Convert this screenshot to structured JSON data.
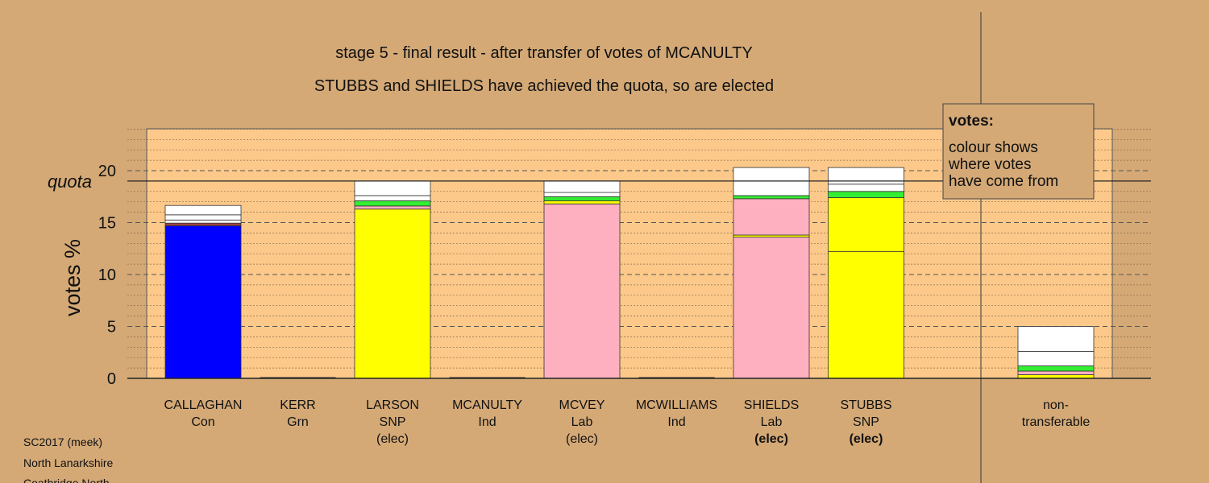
{
  "chart_data": {
    "type": "bar",
    "title": "stage 5 - final result - after transfer of votes of MCANULTY",
    "subtitle": "STUBBS and SHIELDS have achieved the quota, so are elected",
    "ylabel": "votes %",
    "quota_label": "quota",
    "quota": 19,
    "ylim": [
      0,
      24
    ],
    "yticks": [
      "0",
      "5",
      "10",
      "15",
      "20"
    ],
    "grid": true,
    "legend": {
      "title": "votes:",
      "lines": [
        "colour shows",
        "where votes",
        "have come from"
      ],
      "placement": "top-right"
    },
    "colors": {
      "background": "#d4a976",
      "plot_panel": "#fcc98a",
      "Con": "#0000ff",
      "SNP": "#ffff00",
      "Lab": "#ffb0c0",
      "Grn": "#33ee33",
      "Ind": "#ffffff",
      "other": "#a04040"
    },
    "candidates": [
      {
        "name": "CALLAGHAN",
        "party": "Con",
        "status": "",
        "status_bold": false,
        "segments": [
          {
            "from": "Con",
            "value": 14.7
          },
          {
            "from": "other",
            "value": 0.25
          },
          {
            "from": "Ind",
            "value": 0.3
          },
          {
            "from": "Ind",
            "value": 0.5
          },
          {
            "from": "Ind",
            "value": 0.9
          }
        ]
      },
      {
        "name": "KERR",
        "party": "Grn",
        "status": "",
        "status_bold": false,
        "segments": []
      },
      {
        "name": "LARSON",
        "party": "SNP",
        "status": "(elec)",
        "status_bold": false,
        "segments": [
          {
            "from": "SNP",
            "value": 16.3
          },
          {
            "from": "Lab",
            "value": 0.3
          },
          {
            "from": "Grn",
            "value": 0.5
          },
          {
            "from": "Ind",
            "value": 0.5
          },
          {
            "from": "Ind",
            "value": 1.4
          }
        ]
      },
      {
        "name": "MCANULTY",
        "party": "Ind",
        "status": "",
        "status_bold": false,
        "segments": []
      },
      {
        "name": "MCVEY",
        "party": "Lab",
        "status": "(elec)",
        "status_bold": false,
        "segments": [
          {
            "from": "Lab",
            "value": 16.8
          },
          {
            "from": "SNP",
            "value": 0.3
          },
          {
            "from": "Grn",
            "value": 0.4
          },
          {
            "from": "Ind",
            "value": 0.4
          },
          {
            "from": "Ind",
            "value": 1.1
          }
        ]
      },
      {
        "name": "MCWILLIAMS",
        "party": "Ind",
        "status": "",
        "status_bold": false,
        "segments": []
      },
      {
        "name": "SHIELDS",
        "party": "Lab",
        "status": "(elec)",
        "status_bold": true,
        "segments": [
          {
            "from": "Lab",
            "value": 13.6
          },
          {
            "from": "SNP",
            "value": 0.2
          },
          {
            "from": "Lab",
            "value": 3.5
          },
          {
            "from": "Grn",
            "value": 0.3
          },
          {
            "from": "Ind",
            "value": 1.4
          },
          {
            "from": "Ind",
            "value": 1.3
          }
        ]
      },
      {
        "name": "STUBBS",
        "party": "SNP",
        "status": "(elec)",
        "status_bold": true,
        "segments": [
          {
            "from": "SNP",
            "value": 12.2
          },
          {
            "from": "SNP",
            "value": 5.2
          },
          {
            "from": "Grn",
            "value": 0.6
          },
          {
            "from": "Ind",
            "value": 0.7
          },
          {
            "from": "Ind",
            "value": 1.6
          }
        ]
      }
    ],
    "nontransferable": {
      "label_line1": "non-",
      "label_line2": "transferable",
      "segments": [
        {
          "from": "SNP",
          "value": 0.35
        },
        {
          "from": "Lab",
          "value": 0.35
        },
        {
          "from": "Grn",
          "value": 0.5
        },
        {
          "from": "Ind",
          "value": 1.4
        },
        {
          "from": "Ind",
          "value": 2.4
        }
      ]
    }
  },
  "footer": {
    "lines": [
      "SC2017 (meek)",
      "North Lanarkshire",
      "Coatbridge North"
    ]
  }
}
